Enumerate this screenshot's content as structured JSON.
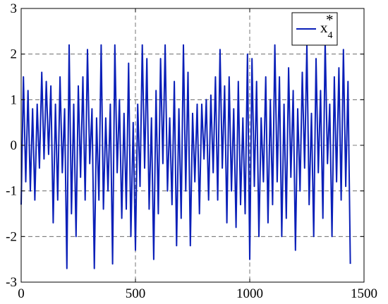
{
  "chart_data": {
    "type": "line",
    "title": "",
    "xlabel": "",
    "ylabel": "",
    "xlim": [
      0,
      1500
    ],
    "ylim": [
      -3,
      3
    ],
    "x_ticks": [
      0,
      500,
      1000,
      1500
    ],
    "y_ticks": [
      -3,
      -2,
      -1,
      0,
      1,
      2,
      3
    ],
    "x_tick_labels": [
      "0",
      "500",
      "1000",
      "1500"
    ],
    "y_tick_labels": [
      "-3",
      "-2",
      "-1",
      "0",
      "1",
      "2",
      "3"
    ],
    "grid": true,
    "legend_position": "top-right",
    "series": [
      {
        "name": "x4*",
        "name_base": "x",
        "name_sub": "4",
        "name_sup": "*",
        "color": "#0a1fb8",
        "x": [
          0,
          10,
          20,
          30,
          40,
          50,
          60,
          70,
          80,
          90,
          100,
          110,
          120,
          130,
          140,
          150,
          160,
          170,
          180,
          190,
          200,
          210,
          220,
          230,
          240,
          250,
          260,
          270,
          280,
          290,
          300,
          310,
          320,
          330,
          340,
          350,
          360,
          370,
          380,
          390,
          400,
          410,
          420,
          430,
          440,
          450,
          460,
          470,
          480,
          490,
          500,
          510,
          520,
          530,
          540,
          550,
          560,
          570,
          580,
          590,
          600,
          610,
          620,
          630,
          640,
          650,
          660,
          670,
          680,
          690,
          700,
          710,
          720,
          730,
          740,
          750,
          760,
          770,
          780,
          790,
          800,
          810,
          820,
          830,
          840,
          850,
          860,
          870,
          880,
          890,
          900,
          910,
          920,
          930,
          940,
          950,
          960,
          970,
          980,
          990,
          1000,
          1010,
          1020,
          1030,
          1040,
          1050,
          1060,
          1070,
          1080,
          1090,
          1100,
          1110,
          1120,
          1130,
          1140,
          1150,
          1160,
          1170,
          1180,
          1190,
          1200,
          1210,
          1220,
          1230,
          1240,
          1250,
          1260,
          1270,
          1280,
          1290,
          1300,
          1310,
          1320,
          1330,
          1340,
          1350,
          1360,
          1370,
          1380,
          1390,
          1400,
          1410,
          1420,
          1430,
          1440
        ],
        "values": [
          -1.3,
          1.5,
          -0.8,
          1.2,
          -1.0,
          0.8,
          -1.2,
          0.9,
          -0.5,
          1.6,
          -0.3,
          1.4,
          -0.2,
          1.3,
          -1.7,
          0.9,
          -1.2,
          1.5,
          -0.6,
          0.8,
          -2.7,
          2.2,
          -1.5,
          0.9,
          -2.0,
          1.3,
          -0.7,
          1.5,
          -1.2,
          2.1,
          -0.4,
          0.8,
          -2.7,
          0.6,
          -1.2,
          2.2,
          -1.4,
          0.6,
          -1.0,
          0.9,
          -2.6,
          2.2,
          -0.6,
          1.0,
          -1.6,
          0.7,
          -1.4,
          1.8,
          -2.0,
          0.5,
          -2.3,
          0.9,
          -0.9,
          2.2,
          -0.5,
          1.9,
          -1.4,
          0.6,
          -2.5,
          1.2,
          -1.5,
          1.9,
          -0.4,
          2.2,
          -1.0,
          0.6,
          -1.3,
          1.4,
          -2.2,
          0.8,
          -1.6,
          2.2,
          -1.0,
          1.6,
          -2.2,
          0.7,
          -0.8,
          0.9,
          -1.5,
          0.9,
          -0.3,
          1.0,
          -1.2,
          1.1,
          -0.6,
          1.5,
          -1.2,
          2.1,
          -0.5,
          1.3,
          -1.7,
          1.5,
          -1.0,
          0.8,
          -1.8,
          1.4,
          -1.3,
          0.6,
          -1.5,
          2.0,
          -2.5,
          1.9,
          -0.9,
          1.4,
          -2.0,
          0.6,
          -0.8,
          1.5,
          -1.7,
          1.0,
          -1.3,
          2.2,
          -0.8,
          1.5,
          -2.0,
          0.9,
          -1.6,
          1.7,
          -0.7,
          1.2,
          -2.3,
          0.8,
          -1.0,
          1.6,
          -0.5,
          2.2,
          -1.3,
          0.7,
          -2.0,
          1.9,
          -0.6,
          1.2,
          -1.6,
          2.3,
          -0.4,
          0.9,
          -2.0,
          1.5,
          -0.8,
          1.7,
          -1.2,
          2.1,
          -0.9,
          1.4,
          -2.6
        ]
      }
    ]
  }
}
